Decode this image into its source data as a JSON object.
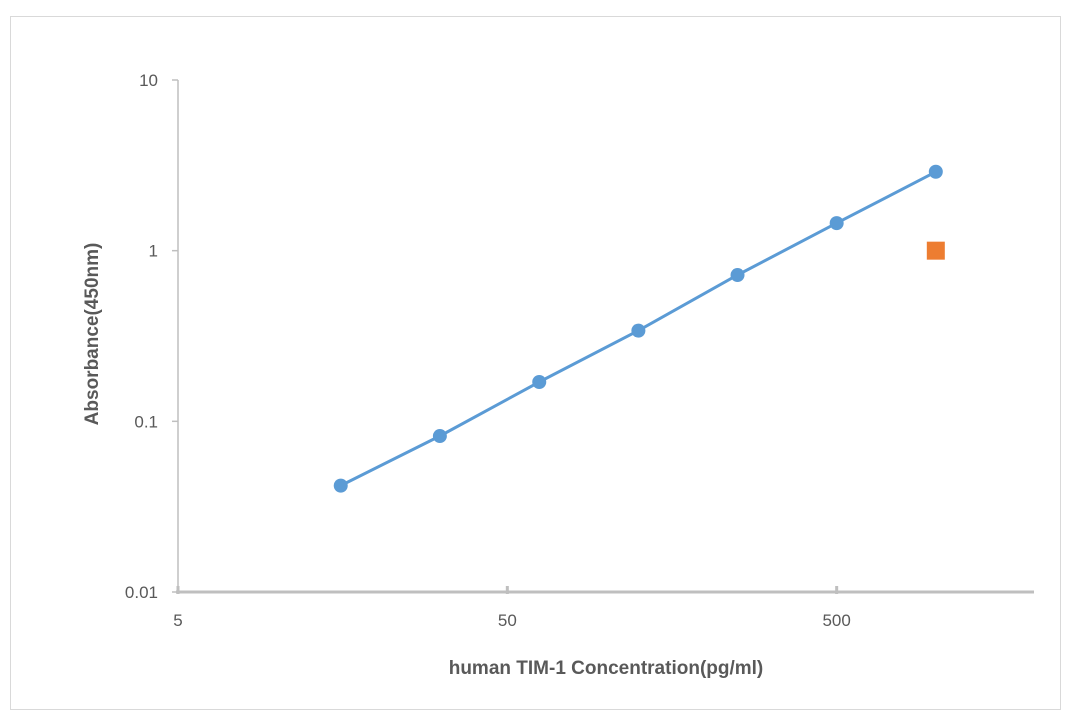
{
  "chart_data": {
    "type": "scatter",
    "xlabel": "human TIM-1 Concentration(pg/ml)",
    "ylabel": "Absorbance(450nm)",
    "x_scale": "log",
    "y_scale": "log",
    "xlim": [
      5,
      5000
    ],
    "ylim": [
      0.01,
      10
    ],
    "x_ticks": [
      "5",
      "50",
      "500"
    ],
    "y_ticks": [
      "0.01",
      "0.1",
      "1",
      "10"
    ],
    "grid": false,
    "legend": "none",
    "series": [
      {
        "color": "#5b9bd5",
        "marker": "circle",
        "line": true,
        "points": [
          {
            "x": 15.6,
            "y": 0.042
          },
          {
            "x": 31.2,
            "y": 0.082
          },
          {
            "x": 62.5,
            "y": 0.17
          },
          {
            "x": 125,
            "y": 0.34
          },
          {
            "x": 250,
            "y": 0.72
          },
          {
            "x": 500,
            "y": 1.45
          },
          {
            "x": 1000,
            "y": 2.9
          }
        ]
      },
      {
        "color": "#ed7d31",
        "marker": "square",
        "line": false,
        "points": [
          {
            "x": 1000,
            "y": 1.0
          }
        ]
      }
    ]
  }
}
